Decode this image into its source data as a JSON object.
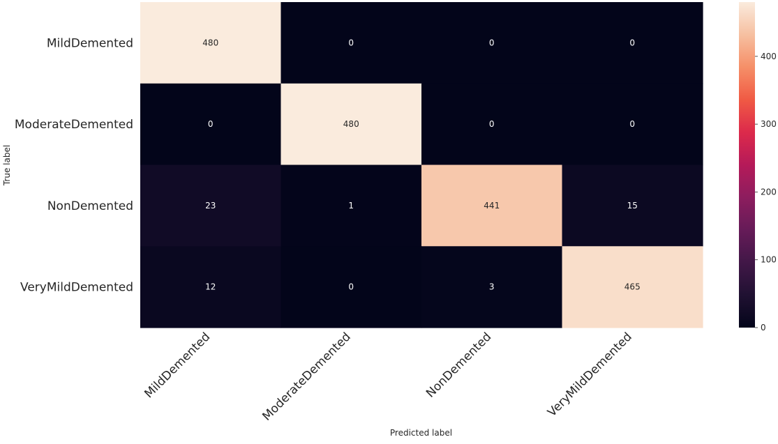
{
  "chart_data": {
    "type": "heatmap",
    "title": "",
    "xlabel": "Predicted label",
    "ylabel": "True label",
    "x_categories": [
      "MildDemented",
      "ModerateDemented",
      "NonDemented",
      "VeryMildDemented"
    ],
    "y_categories": [
      "MildDemented",
      "ModerateDemented",
      "NonDemented",
      "VeryMildDemented"
    ],
    "values": [
      [
        480,
        0,
        0,
        0
      ],
      [
        0,
        480,
        0,
        0
      ],
      [
        23,
        1,
        441,
        15
      ],
      [
        12,
        0,
        3,
        465
      ]
    ],
    "colormap": "rocket",
    "colorbar": {
      "range": [
        0,
        480
      ],
      "ticks": [
        0,
        100,
        200,
        300,
        400
      ],
      "tick_labels": [
        "0",
        "100",
        "200",
        "300",
        "400"
      ]
    },
    "annotation_colors": {
      "on_dark": "#ffffff",
      "on_light": "#262626"
    },
    "grid": false
  }
}
